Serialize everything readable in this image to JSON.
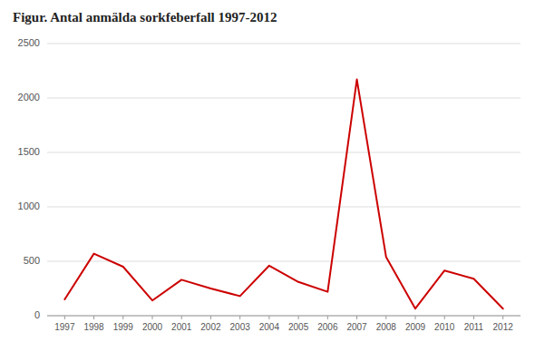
{
  "chart_data": {
    "type": "line",
    "title": "Figur. Antal anmälda sorkfeberfall 1997-2012",
    "x": [
      1997,
      1998,
      1999,
      2000,
      2001,
      2002,
      2003,
      2004,
      2005,
      2006,
      2007,
      2008,
      2009,
      2010,
      2011,
      2012
    ],
    "values": [
      150,
      570,
      450,
      140,
      330,
      250,
      180,
      460,
      310,
      220,
      2170,
      540,
      65,
      415,
      340,
      65
    ],
    "color": "#cc0000",
    "xlim": [
      1996.4,
      2012.6
    ],
    "xticks": [
      1997,
      1998,
      1999,
      2000,
      2001,
      2002,
      2003,
      2004,
      2005,
      2006,
      2007,
      2008,
      2009,
      2010,
      2011,
      2012
    ],
    "ylim": [
      0,
      2500
    ],
    "yticks": [
      0,
      500,
      1000,
      1500,
      2000,
      2500
    ],
    "grid": true
  }
}
